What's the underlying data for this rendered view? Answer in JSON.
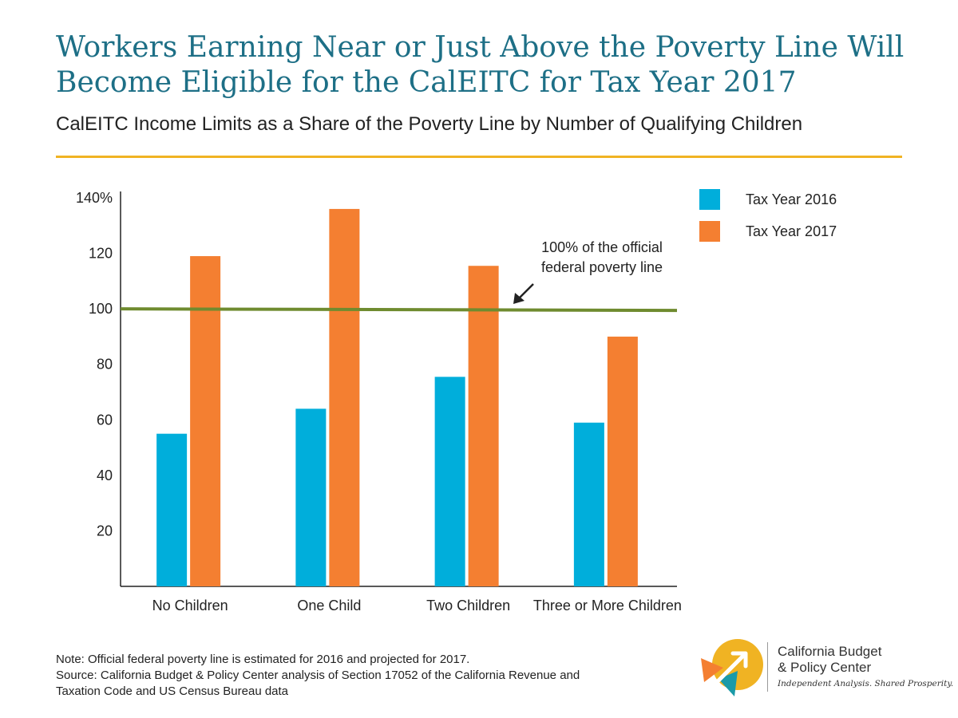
{
  "title_lines": [
    "Workers Earning Near or Just Above the Poverty Line Will",
    "Become Eligible for the CalEITC for Tax Year 2017"
  ],
  "subtitle": "CalEITC Income Limits as a Share of the Poverty Line by Number of Qualifying Children",
  "colors": {
    "title": "#1d6f86",
    "rule": "#f0b323",
    "tax2016": "#00aedb",
    "tax2017": "#f47f31",
    "poverty_line": "#6f8b2f"
  },
  "chart_data": {
    "type": "bar",
    "categories": [
      "No Children",
      "One Child",
      "Two Children",
      "Three or More Children"
    ],
    "series": [
      {
        "name": "Tax Year 2016",
        "values": [
          55,
          64,
          75.5,
          59
        ]
      },
      {
        "name": "Tax Year 2017",
        "values": [
          119,
          136,
          115.5,
          90
        ]
      }
    ],
    "ylim": [
      0,
      140
    ],
    "yticks": [
      20,
      40,
      60,
      80,
      100,
      120,
      140
    ],
    "ytick_labels": [
      "20",
      "40",
      "60",
      "80",
      "100",
      "120",
      "140%"
    ],
    "reference_line": {
      "value": 100
    },
    "annotation": {
      "lines": [
        "100% of the official",
        "federal poverty line"
      ]
    },
    "legend": {
      "position": "top-right"
    },
    "grid": false
  },
  "footnote": {
    "note": "Note: Official federal poverty line is estimated for 2016 and projected for 2017.",
    "source_lines": [
      "Source: California Budget & Policy Center analysis of Section 17052 of the California Revenue and",
      "Taxation Code and US Census Bureau data"
    ]
  },
  "logo": {
    "name_lines": [
      "California Budget",
      "& Policy Center"
    ],
    "tagline": "Independent Analysis. Shared Prosperity.",
    "colors": {
      "yellow": "#f0b323",
      "orange": "#f47f31",
      "teal": "#1a9aa8"
    }
  }
}
